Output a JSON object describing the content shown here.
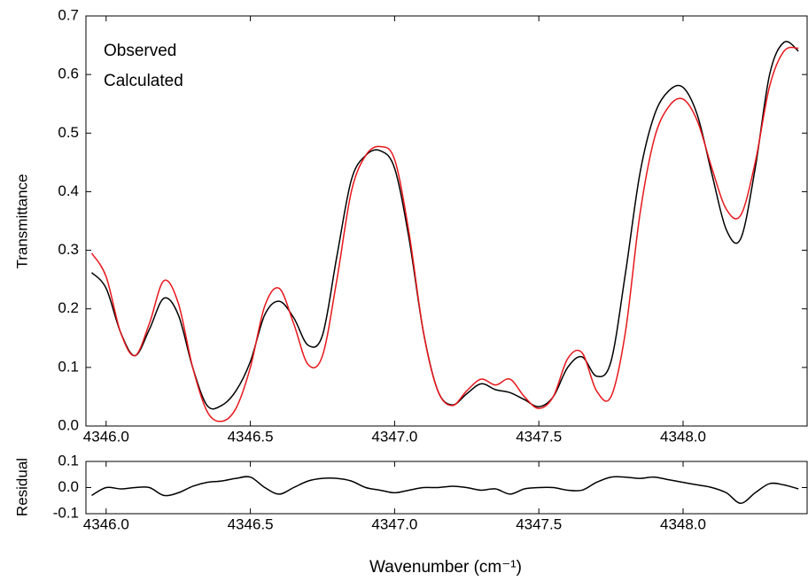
{
  "chart_data": [
    {
      "type": "line",
      "ylabel": "Transmittance",
      "legend": "upper left",
      "x": [
        4345.95,
        4346.0,
        4346.05,
        4346.1,
        4346.15,
        4346.2,
        4346.25,
        4346.3,
        4346.35,
        4346.4,
        4346.45,
        4346.5,
        4346.55,
        4346.6,
        4346.65,
        4346.7,
        4346.75,
        4346.8,
        4346.85,
        4346.9,
        4346.95,
        4347.0,
        4347.05,
        4347.1,
        4347.15,
        4347.2,
        4347.25,
        4347.3,
        4347.35,
        4347.4,
        4347.45,
        4347.5,
        4347.55,
        4347.6,
        4347.65,
        4347.7,
        4347.75,
        4347.8,
        4347.85,
        4347.9,
        4347.95,
        4348.0,
        4348.05,
        4348.1,
        4348.15,
        4348.2,
        4348.25,
        4348.3,
        4348.35,
        4348.4
      ],
      "series": [
        {
          "name": "Observed",
          "color": "#000000",
          "values": [
            0.262,
            0.235,
            0.16,
            0.12,
            0.165,
            0.218,
            0.19,
            0.1,
            0.035,
            0.035,
            0.06,
            0.11,
            0.19,
            0.213,
            0.185,
            0.138,
            0.155,
            0.29,
            0.42,
            0.462,
            0.47,
            0.44,
            0.32,
            0.16,
            0.06,
            0.036,
            0.055,
            0.072,
            0.062,
            0.057,
            0.045,
            0.033,
            0.05,
            0.1,
            0.118,
            0.085,
            0.11,
            0.26,
            0.43,
            0.53,
            0.572,
            0.578,
            0.53,
            0.43,
            0.335,
            0.32,
            0.44,
            0.6,
            0.655,
            0.64
          ]
        },
        {
          "name": "Calculated",
          "color": "#e8161b",
          "values": [
            0.295,
            0.255,
            0.16,
            0.12,
            0.175,
            0.248,
            0.21,
            0.1,
            0.025,
            0.008,
            0.03,
            0.1,
            0.205,
            0.235,
            0.175,
            0.105,
            0.12,
            0.25,
            0.4,
            0.462,
            0.477,
            0.455,
            0.33,
            0.16,
            0.06,
            0.035,
            0.06,
            0.08,
            0.07,
            0.08,
            0.05,
            0.03,
            0.05,
            0.115,
            0.125,
            0.06,
            0.05,
            0.16,
            0.36,
            0.49,
            0.545,
            0.558,
            0.52,
            0.44,
            0.37,
            0.36,
            0.45,
            0.58,
            0.64,
            0.645
          ]
        }
      ],
      "xlim": [
        4345.93,
        4348.43
      ],
      "xticks": [
        {
          "value": 4346,
          "label": "4346.0"
        },
        4346.5,
        {
          "value": 4347,
          "label": "4347.0"
        },
        4347.5,
        {
          "value": 4348,
          "label": "4348.0"
        }
      ],
      "ylim": [
        0,
        0.7
      ],
      "yticks": [
        {
          "value": 0,
          "label": "0.0"
        },
        0.1,
        0.2,
        0.3,
        0.4,
        0.5,
        0.6,
        0.7
      ]
    },
    {
      "type": "line",
      "ylabel": "Residual",
      "xlabel": "Wavenumber (cm⁻¹)",
      "x": [
        4345.95,
        4346.0,
        4346.05,
        4346.1,
        4346.15,
        4346.2,
        4346.25,
        4346.3,
        4346.35,
        4346.4,
        4346.45,
        4346.5,
        4346.55,
        4346.6,
        4346.65,
        4346.7,
        4346.75,
        4346.8,
        4346.85,
        4346.9,
        4346.95,
        4347.0,
        4347.05,
        4347.1,
        4347.15,
        4347.2,
        4347.25,
        4347.3,
        4347.35,
        4347.4,
        4347.45,
        4347.5,
        4347.55,
        4347.6,
        4347.65,
        4347.7,
        4347.75,
        4347.8,
        4347.85,
        4347.9,
        4347.95,
        4348.0,
        4348.05,
        4348.1,
        4348.15,
        4348.2,
        4348.25,
        4348.3,
        4348.35,
        4348.4
      ],
      "values": [
        -0.03,
        0.0,
        -0.005,
        0.0,
        0.0,
        -0.03,
        -0.02,
        0.005,
        0.02,
        0.025,
        0.035,
        0.04,
        0.0,
        -0.025,
        0.0,
        0.025,
        0.035,
        0.035,
        0.025,
        0.0,
        -0.01,
        -0.02,
        -0.01,
        0.0,
        0.0,
        0.005,
        0.0,
        -0.01,
        -0.005,
        -0.025,
        -0.005,
        0.0,
        0.0,
        -0.01,
        -0.01,
        0.02,
        0.04,
        0.04,
        0.035,
        0.04,
        0.03,
        0.02,
        0.01,
        0.0,
        -0.02,
        -0.06,
        -0.02,
        0.015,
        0.01,
        -0.005
      ],
      "color": "#000000",
      "xlim": [
        4345.93,
        4348.43
      ],
      "xticks": [
        {
          "value": 4346,
          "label": "4346.0"
        },
        4346.5,
        {
          "value": 4347,
          "label": "4347.0"
        },
        4347.5,
        {
          "value": 4348,
          "label": "4348.0"
        }
      ],
      "ylim": [
        -0.1,
        0.1
      ],
      "yticks": [
        0.1,
        {
          "value": 0,
          "label": "0.0"
        },
        -0.1
      ]
    }
  ]
}
